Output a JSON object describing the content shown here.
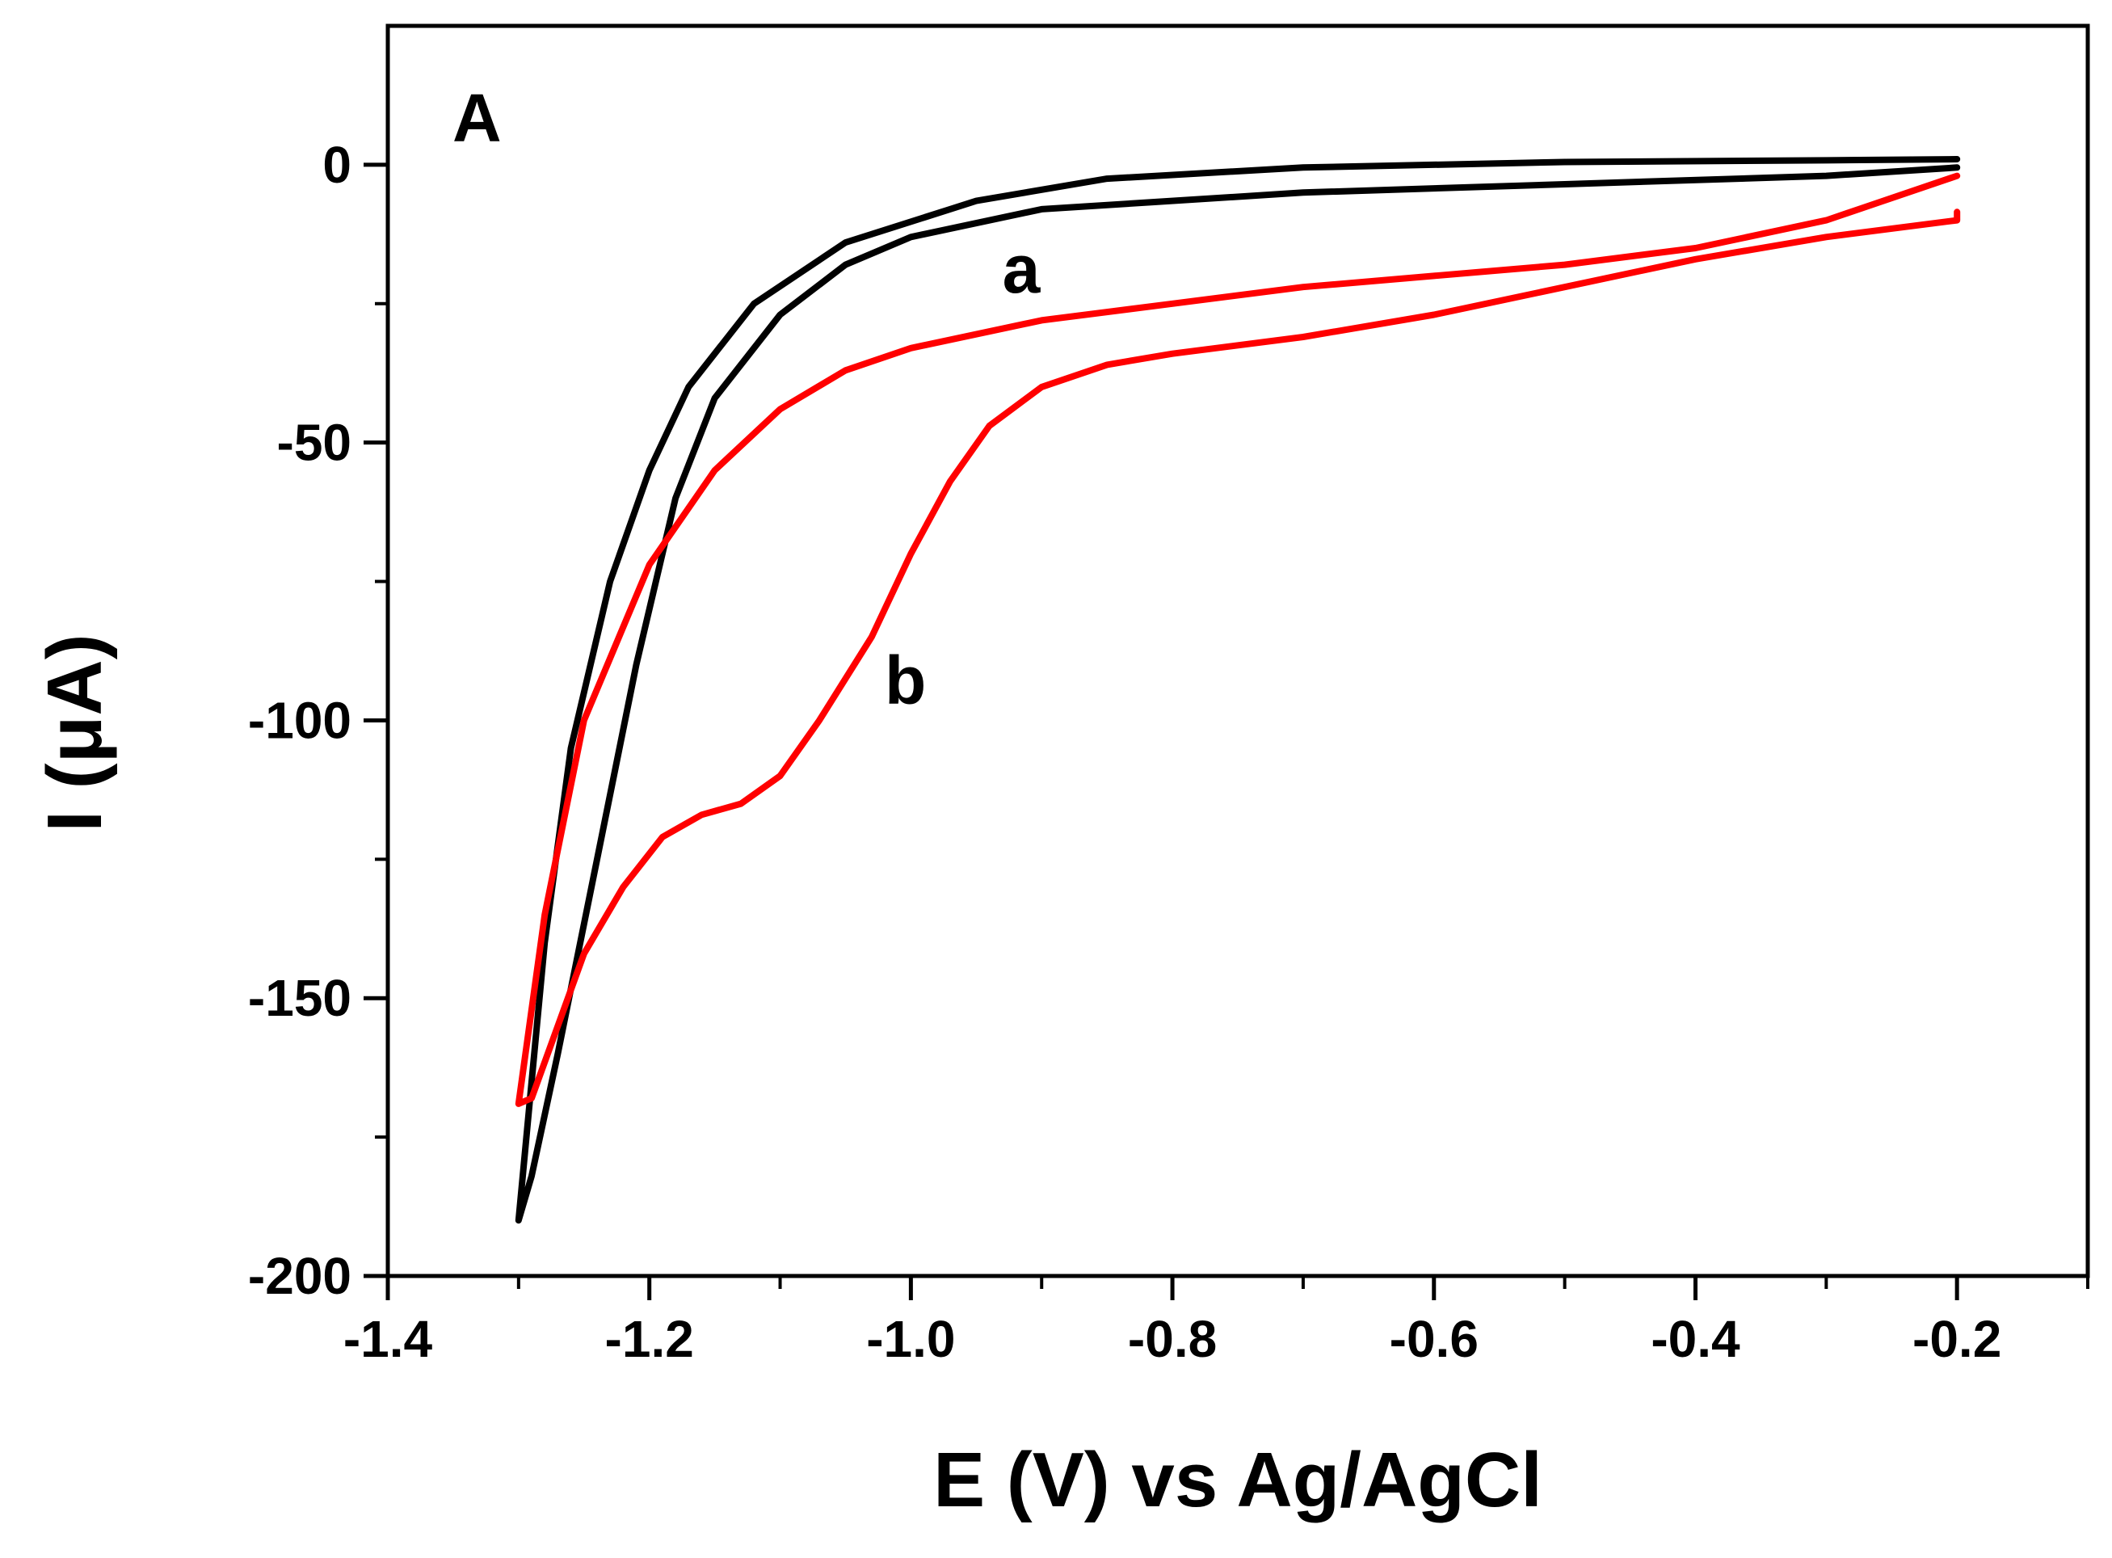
{
  "chart_data": {
    "type": "line",
    "panel_label": "A",
    "xlabel": "E (V) vs Ag/AgCl",
    "ylabel": "I (μA)",
    "xlim": [
      -1.4,
      -0.1
    ],
    "ylim": [
      -200,
      25
    ],
    "x_ticks": [
      -1.4,
      -1.2,
      -1.0,
      -0.8,
      -0.6,
      -0.4,
      -0.2
    ],
    "x_tick_labels": [
      "-1.4",
      "-1.2",
      "-1.0",
      "-0.8",
      "-0.6",
      "-0.4",
      "-0.2"
    ],
    "y_ticks": [
      0,
      -50,
      -100,
      -150,
      -200
    ],
    "y_tick_labels": [
      "0",
      "-50",
      "-100",
      "-150",
      "-200"
    ],
    "grid": false,
    "series": [
      {
        "name": "a",
        "color": "#000000",
        "label_position": {
          "x": -0.93,
          "y": -23
        },
        "points": [
          [
            -0.2,
            1.0
          ],
          [
            -0.3,
            0.8
          ],
          [
            -0.5,
            0.5
          ],
          [
            -0.7,
            -0.5
          ],
          [
            -0.85,
            -2.5
          ],
          [
            -0.95,
            -6.5
          ],
          [
            -1.05,
            -14
          ],
          [
            -1.12,
            -25
          ],
          [
            -1.17,
            -40
          ],
          [
            -1.2,
            -55
          ],
          [
            -1.23,
            -75
          ],
          [
            -1.26,
            -105
          ],
          [
            -1.28,
            -140
          ],
          [
            -1.3,
            -190
          ],
          [
            -1.29,
            -182
          ],
          [
            -1.27,
            -160
          ],
          [
            -1.24,
            -125
          ],
          [
            -1.21,
            -90
          ],
          [
            -1.18,
            -60
          ],
          [
            -1.15,
            -42
          ],
          [
            -1.1,
            -27
          ],
          [
            -1.05,
            -18
          ],
          [
            -1.0,
            -13
          ],
          [
            -0.9,
            -8
          ],
          [
            -0.7,
            -5
          ],
          [
            -0.5,
            -3.5
          ],
          [
            -0.3,
            -2
          ],
          [
            -0.2,
            -0.5
          ]
        ]
      },
      {
        "name": "b",
        "color": "#ff0000",
        "label_position": {
          "x": -1.02,
          "y": -97
        },
        "points": [
          [
            -0.2,
            -2
          ],
          [
            -0.3,
            -10
          ],
          [
            -0.4,
            -15
          ],
          [
            -0.5,
            -18
          ],
          [
            -0.6,
            -20
          ],
          [
            -0.7,
            -22
          ],
          [
            -0.8,
            -25
          ],
          [
            -0.9,
            -28
          ],
          [
            -1.0,
            -33
          ],
          [
            -1.05,
            -37
          ],
          [
            -1.1,
            -44
          ],
          [
            -1.15,
            -55
          ],
          [
            -1.2,
            -72
          ],
          [
            -1.25,
            -100
          ],
          [
            -1.28,
            -135
          ],
          [
            -1.3,
            -169
          ],
          [
            -1.29,
            -168
          ],
          [
            -1.27,
            -155
          ],
          [
            -1.25,
            -142
          ],
          [
            -1.22,
            -130
          ],
          [
            -1.19,
            -121
          ],
          [
            -1.16,
            -117
          ],
          [
            -1.13,
            -115
          ],
          [
            -1.1,
            -110
          ],
          [
            -1.07,
            -100
          ],
          [
            -1.03,
            -85
          ],
          [
            -1.0,
            -70
          ],
          [
            -0.97,
            -57
          ],
          [
            -0.94,
            -47
          ],
          [
            -0.9,
            -40
          ],
          [
            -0.85,
            -36
          ],
          [
            -0.8,
            -34
          ],
          [
            -0.7,
            -31
          ],
          [
            -0.6,
            -27
          ],
          [
            -0.5,
            -22
          ],
          [
            -0.4,
            -17
          ],
          [
            -0.3,
            -13
          ],
          [
            -0.2,
            -10
          ],
          [
            -0.2,
            -8.5
          ]
        ]
      }
    ]
  }
}
